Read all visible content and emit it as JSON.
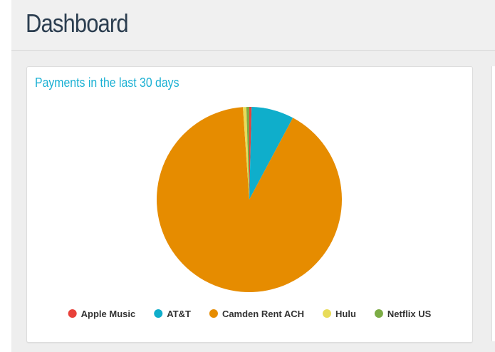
{
  "header": {
    "title": "Dashboard"
  },
  "card": {
    "title": "Payments in the last 30 days"
  },
  "colors": {
    "accent": "#1ab0d3",
    "title": "#2c3e50"
  },
  "chart_data": {
    "type": "pie",
    "title": "Payments in the last 30 days",
    "legend_position": "bottom",
    "slices": [
      {
        "label": "Apple Music",
        "value": 0.4,
        "color": "#e8413a"
      },
      {
        "label": "AT&T",
        "value": 7.4,
        "color": "#0faecb"
      },
      {
        "label": "Camden Rent ACH",
        "value": 91.1,
        "color": "#e68c00"
      },
      {
        "label": "Hulu",
        "value": 0.6,
        "color": "#e8dc5a"
      },
      {
        "label": "Netflix US",
        "value": 0.5,
        "color": "#7cac45"
      }
    ]
  }
}
